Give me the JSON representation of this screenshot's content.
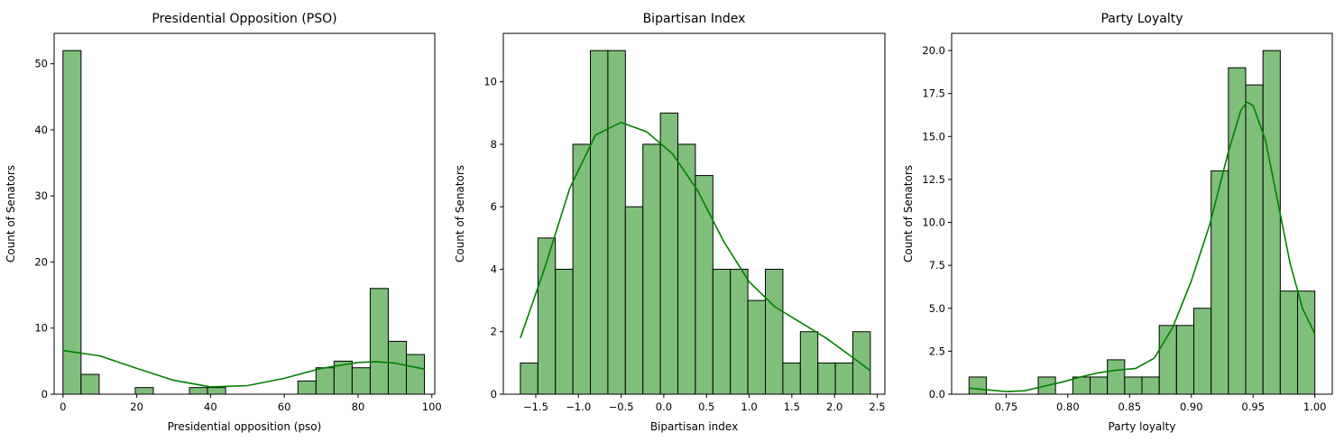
{
  "chart_data": [
    {
      "type": "bar",
      "title": "Presidential Opposition (PSO)",
      "xlabel": "Presidential opposition (pso)",
      "ylabel": "Count of Senators",
      "xlim": [
        -2.4,
        100.8
      ],
      "ylim": [
        0,
        54.6
      ],
      "xticks": [
        0,
        20,
        40,
        60,
        80,
        100
      ],
      "yticks": [
        0,
        10,
        20,
        30,
        40,
        50
      ],
      "bin_edges": [
        0,
        4.9,
        9.8,
        14.7,
        19.6,
        24.5,
        29.4,
        34.3,
        39.2,
        44.1,
        49.0,
        53.9,
        58.8,
        63.7,
        68.6,
        73.5,
        78.4,
        83.3,
        88.2,
        93.1,
        98.0
      ],
      "counts": [
        52,
        3,
        0,
        0,
        1,
        0,
        0,
        1,
        1,
        0,
        0,
        0,
        0,
        2,
        4,
        5,
        4,
        16,
        8,
        6
      ],
      "kde_x": [
        0,
        10,
        20,
        30,
        40,
        50,
        60,
        70,
        80,
        85,
        90,
        98
      ],
      "kde_y": [
        6.6,
        5.8,
        3.9,
        2.1,
        1.1,
        1.3,
        2.4,
        3.9,
        4.8,
        4.9,
        4.7,
        3.8
      ],
      "bar_color": "#7fbf7b",
      "edge_color": "#000000",
      "line_color": "#008000"
    },
    {
      "type": "bar",
      "title": "Bipartisan Index",
      "xlabel": "Bipartisan index",
      "ylabel": "Count of Senators",
      "xlim": [
        -1.88,
        2.59
      ],
      "ylim": [
        0,
        11.55
      ],
      "xticks": [
        -1.5,
        -1.0,
        -0.5,
        0.0,
        0.5,
        1.0,
        1.5,
        2.0,
        2.5
      ],
      "xtick_labels": [
        "−1.5",
        "−1.0",
        "−0.5",
        "0.0",
        "0.5",
        "1.0",
        "1.5",
        "2.0",
        "2.5"
      ],
      "yticks": [
        0,
        2,
        4,
        6,
        8,
        10
      ],
      "bin_edges": [
        -1.68,
        -1.475,
        -1.27,
        -1.065,
        -0.86,
        -0.655,
        -0.45,
        -0.245,
        -0.04,
        0.165,
        0.37,
        0.575,
        0.78,
        0.985,
        1.19,
        1.395,
        1.6,
        1.805,
        2.01,
        2.215,
        2.42
      ],
      "counts": [
        1,
        5,
        4,
        8,
        11,
        11,
        6,
        8,
        9,
        8,
        7,
        4,
        4,
        3,
        4,
        1,
        2,
        1,
        1,
        2
      ],
      "kde_x": [
        -1.68,
        -1.4,
        -1.1,
        -0.8,
        -0.5,
        -0.2,
        0.1,
        0.4,
        0.7,
        1.0,
        1.3,
        1.6,
        1.9,
        2.2,
        2.42
      ],
      "kde_y": [
        1.8,
        4.0,
        6.6,
        8.3,
        8.7,
        8.4,
        7.7,
        6.5,
        4.9,
        3.6,
        2.8,
        2.3,
        1.8,
        1.2,
        0.75
      ],
      "bar_color": "#7fbf7b",
      "edge_color": "#000000",
      "line_color": "#008000"
    },
    {
      "type": "bar",
      "title": "Party Loyalty",
      "xlabel": "Party loyalty",
      "ylabel": "Count of Senators",
      "xlim": [
        0.7059,
        1.0141
      ],
      "ylim": [
        0,
        21.0
      ],
      "xticks": [
        0.75,
        0.8,
        0.85,
        0.9,
        0.95,
        1.0
      ],
      "xtick_labels": [
        "0.75",
        "0.80",
        "0.85",
        "0.90",
        "0.95",
        "1.00"
      ],
      "yticks": [
        0,
        2.5,
        5.0,
        7.5,
        10.0,
        12.5,
        15.0,
        17.5,
        20.0
      ],
      "ytick_labels": [
        "0.0",
        "2.5",
        "5.0",
        "7.5",
        "10.0",
        "12.5",
        "15.0",
        "17.5",
        "20.0"
      ],
      "bin_edges": [
        0.72,
        0.734,
        0.748,
        0.762,
        0.776,
        0.79,
        0.804,
        0.818,
        0.832,
        0.846,
        0.86,
        0.874,
        0.888,
        0.902,
        0.916,
        0.93,
        0.944,
        0.958,
        0.972,
        0.986,
        1.0
      ],
      "counts": [
        1,
        0,
        0,
        0,
        1,
        0,
        1,
        1,
        2,
        1,
        1,
        4,
        4,
        5,
        13,
        19,
        18,
        20,
        6,
        6
      ],
      "kde_x": [
        0.72,
        0.735,
        0.75,
        0.765,
        0.78,
        0.795,
        0.81,
        0.825,
        0.84,
        0.855,
        0.87,
        0.885,
        0.9,
        0.915,
        0.93,
        0.94,
        0.945,
        0.95,
        0.96,
        0.97,
        0.98,
        0.99,
        1.0
      ],
      "kde_y": [
        0.35,
        0.25,
        0.15,
        0.2,
        0.45,
        0.7,
        1.0,
        1.25,
        1.4,
        1.5,
        2.1,
        3.9,
        6.6,
        9.9,
        14.1,
        16.5,
        17.0,
        16.8,
        14.8,
        11.2,
        7.6,
        5.0,
        3.5
      ],
      "bar_color": "#7fbf7b",
      "edge_color": "#000000",
      "line_color": "#008000"
    }
  ]
}
